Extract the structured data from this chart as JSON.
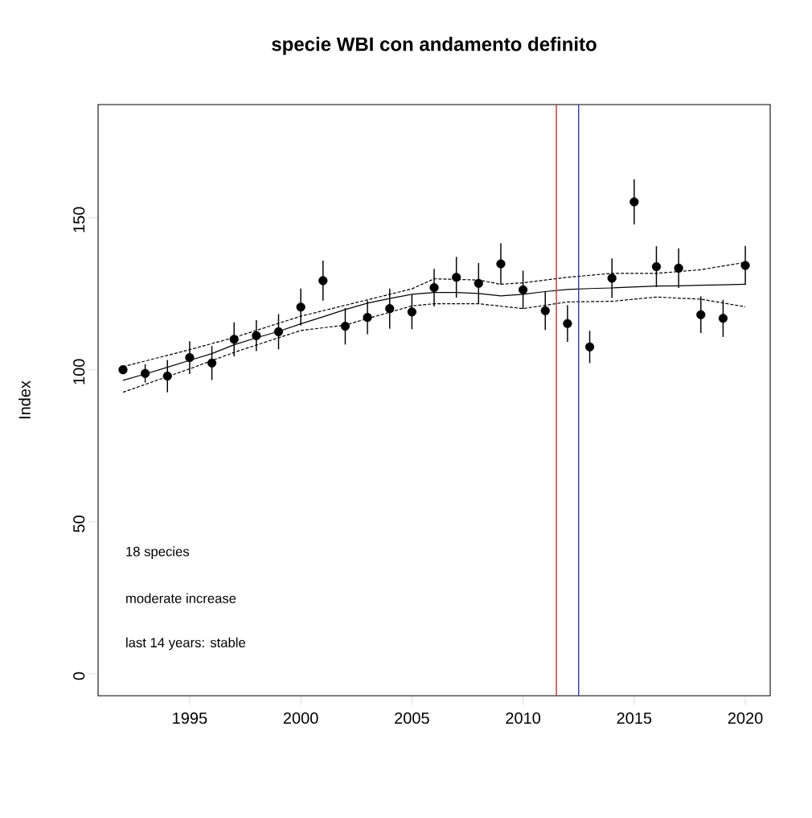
{
  "chart_data": {
    "type": "scatter",
    "title": "specie WBI con andamento definito",
    "ylabel": "Index",
    "x": [
      1992,
      1993,
      1994,
      1995,
      1996,
      1997,
      1998,
      1999,
      2000,
      2001,
      2002,
      2003,
      2004,
      2005,
      2006,
      2007,
      2008,
      2009,
      2010,
      2011,
      2012,
      2013,
      2014,
      2015,
      2016,
      2017,
      2018,
      2019,
      2020
    ],
    "series": [
      {
        "color": "#000000",
        "marker": "circle",
        "values": [
          100,
          98.8,
          97.9,
          104.0,
          102.2,
          110.0,
          111.2,
          112.5,
          120.6,
          129.3,
          114.3,
          117.2,
          120.1,
          119.0,
          127.0,
          130.4,
          128.4,
          134.8,
          126.3,
          119.4,
          115.2,
          107.5,
          130.1,
          155.2,
          133.9,
          133.4,
          118.1,
          116.9,
          134.3
        ],
        "errors": [
          null,
          3,
          5.3,
          5.4,
          5.6,
          5.6,
          5.1,
          5.8,
          6.1,
          6.6,
          6,
          5.5,
          6.6,
          5.7,
          6.2,
          6.7,
          6.7,
          6.8,
          6.3,
          6.3,
          6,
          5.3,
          6.5,
          7.4,
          6.7,
          6.5,
          6,
          6.1,
          6.4
        ]
      },
      {
        "type": "line",
        "color": "#000000",
        "marker": "none",
        "line_style": "solid",
        "values": [
          96.5,
          98.6,
          100.8,
          103.1,
          105.3,
          108.2,
          110.5,
          112.6,
          115.1,
          117.4,
          119.8,
          121.9,
          123.4,
          124.8,
          125.4,
          125.4,
          125.1,
          124.3,
          124.8,
          125.7,
          126.4,
          126.7,
          126.9,
          127.2,
          127.5,
          127.6,
          127.8,
          127.9,
          128.1
        ]
      },
      {
        "type": "line",
        "color": "#000000",
        "marker": "none",
        "line_style": "dashed",
        "x": [
          1992,
          1995,
          1997,
          2000,
          2002,
          2005,
          2006,
          2008,
          2009,
          2010,
          2012,
          2014,
          2016,
          2018,
          2020
        ],
        "values": [
          101.0,
          106.6,
          110.6,
          117.6,
          121.2,
          126.6,
          129.9,
          129.5,
          128.1,
          128.6,
          130.4,
          131.7,
          131.7,
          132.9,
          135.3
        ]
      },
      {
        "type": "line",
        "color": "#000000",
        "marker": "none",
        "line_style": "dashed",
        "x": [
          1992,
          1995,
          1997,
          2000,
          2002,
          2005,
          2006,
          2008,
          2010,
          2012,
          2014,
          2016,
          2018,
          2020
        ],
        "values": [
          92.6,
          100.3,
          105.7,
          112.9,
          114.7,
          121.0,
          121.7,
          121.7,
          120.1,
          122.3,
          122.5,
          123.9,
          123.2,
          120.7
        ]
      }
    ],
    "ref_lines": [
      {
        "axis": "x",
        "value": 2011.5,
        "color": "#b0403a"
      },
      {
        "axis": "x",
        "value": 2012.5,
        "color": "#3c3f9c"
      }
    ],
    "annotations": [
      "18 species",
      "moderate increase",
      "last 14 years: stable"
    ],
    "xlim": [
      1990.88,
      2021.12
    ],
    "ylim": [
      -7.2,
      187.2
    ],
    "xticks": [
      1995,
      2000,
      2005,
      2010,
      2015,
      2020
    ],
    "yticks": [
      0,
      50,
      100,
      150
    ]
  }
}
